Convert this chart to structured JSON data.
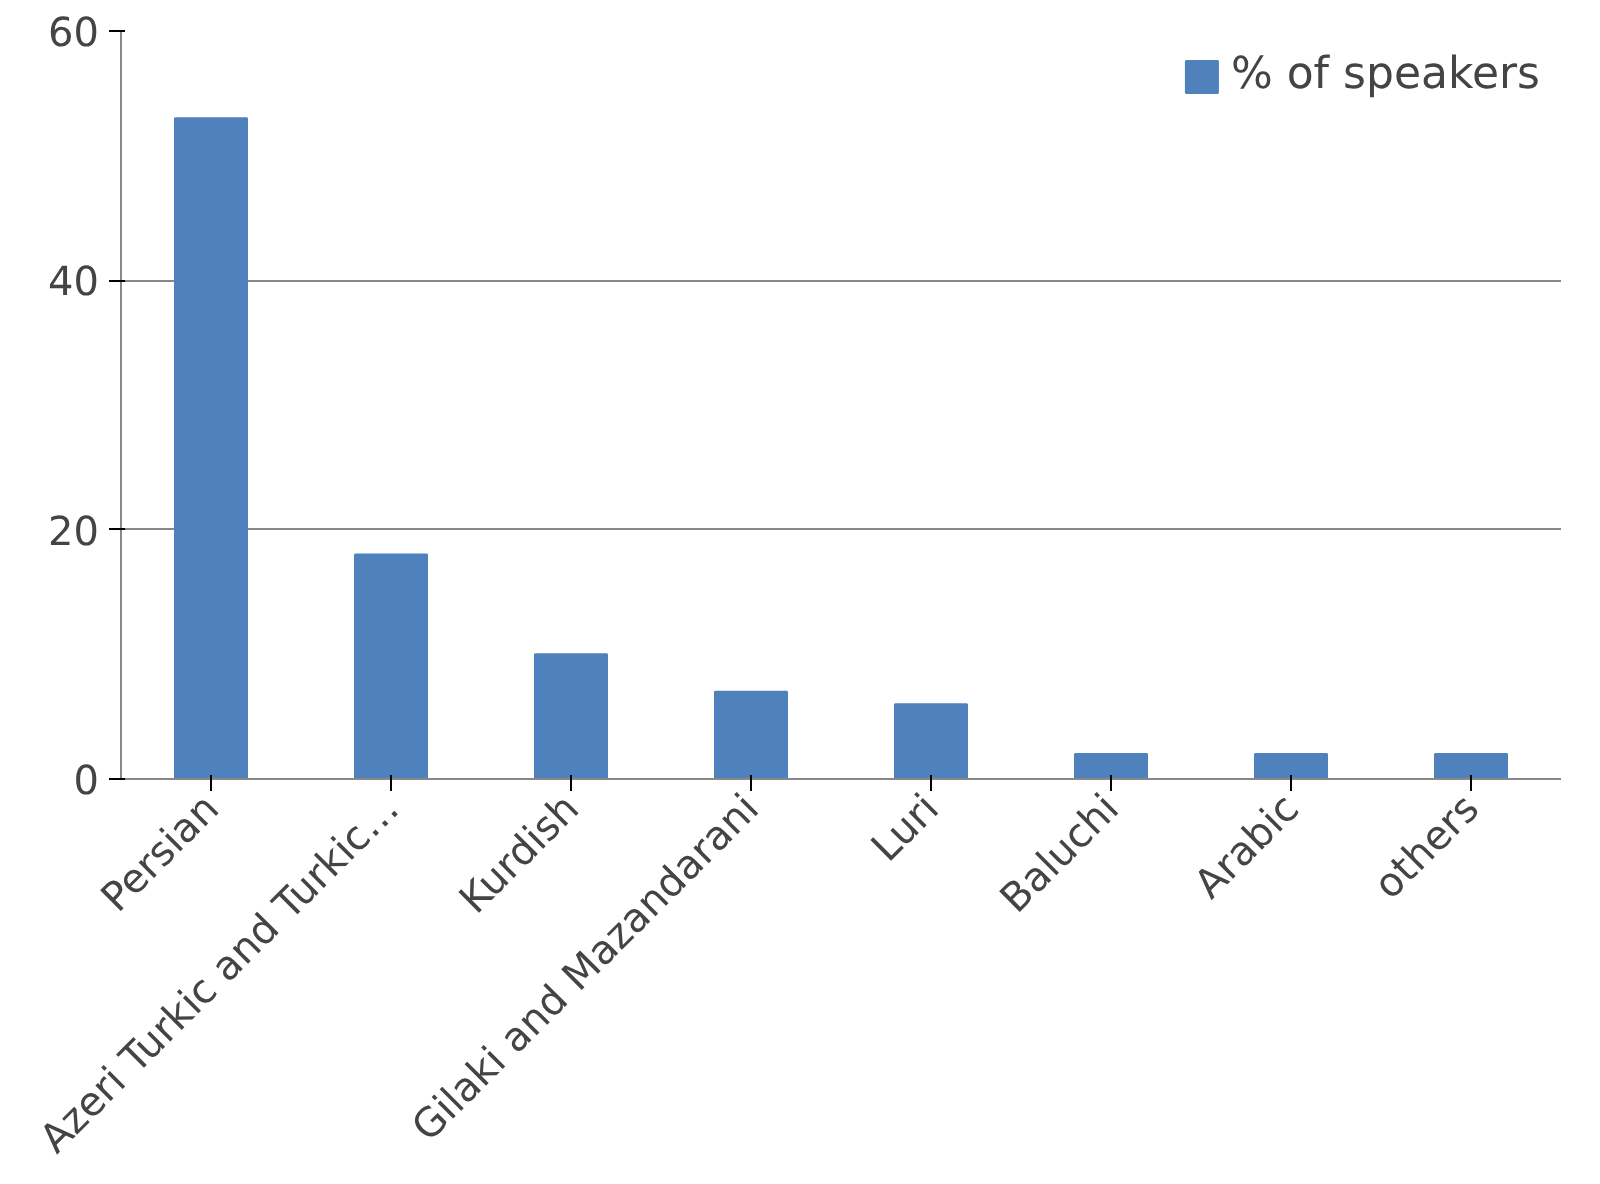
{
  "chart_data": {
    "type": "bar",
    "categories": [
      "Persian",
      "Azeri Turkic and Turkic…",
      "Kurdish",
      "Gilaki and Mazandarani",
      "Luri",
      "Baluchi",
      "Arabic",
      "others"
    ],
    "series": [
      {
        "name": "% of speakers",
        "color": "#4f81bd",
        "values": [
          53,
          18,
          10,
          7,
          6,
          2,
          2,
          2
        ]
      }
    ],
    "ylim": [
      0,
      60
    ],
    "yticks": [
      0,
      20,
      40,
      60
    ],
    "grid": "y",
    "legend": "top right"
  }
}
